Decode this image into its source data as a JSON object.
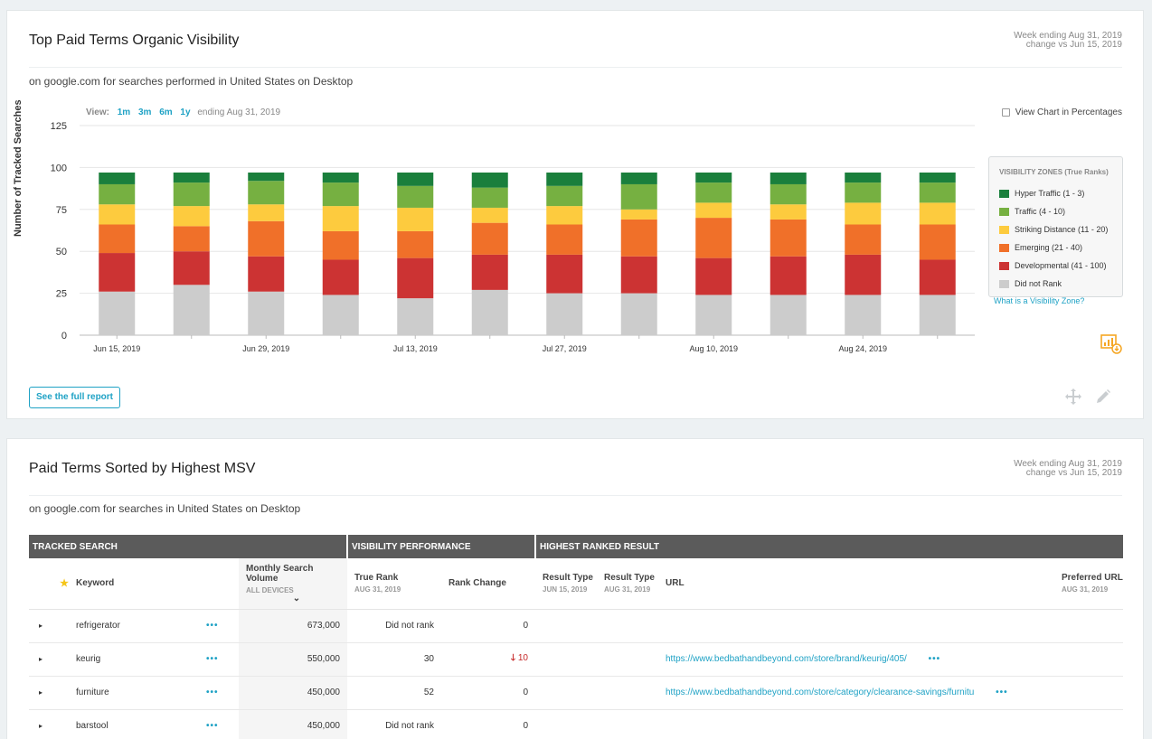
{
  "card1": {
    "title": "Top Paid Terms Organic Visibility",
    "week_line1": "Week ending Aug 31, 2019",
    "week_line2": "change vs Jun 15, 2019",
    "subtitle": "on google.com for searches performed in United States on Desktop",
    "view_label": "View:",
    "view_options": [
      "1m",
      "3m",
      "6m",
      "1y"
    ],
    "view_ending": "ending Aug 31, 2019",
    "percent_label": "View Chart in Percentages",
    "legend_title": "VISIBILITY ZONES (True Ranks)",
    "visibility_link": "What is a Visibility Zone?",
    "full_report": "See the full report"
  },
  "chart_data": {
    "type": "bar",
    "stacked": true,
    "ylabel": "Number of Tracked Searches",
    "ylim": [
      0,
      125
    ],
    "yticks": [
      0,
      25,
      50,
      75,
      100,
      125
    ],
    "xtick_labels": [
      "Jun 15, 2019",
      "Jun 29, 2019",
      "Jul 13, 2019",
      "Jul 27, 2019",
      "Aug 10, 2019",
      "Aug 24, 2019"
    ],
    "legend": "right",
    "grid": true,
    "series": [
      {
        "name": "Did not Rank",
        "color": "#cccccc",
        "values": [
          26,
          30,
          26,
          24,
          22,
          27,
          25,
          25,
          24,
          24,
          24,
          24
        ]
      },
      {
        "name": "Developmental (41 - 100)",
        "color": "#cc3333",
        "values": [
          23,
          20,
          21,
          21,
          24,
          21,
          23,
          22,
          22,
          23,
          24,
          21
        ]
      },
      {
        "name": "Emerging (21 - 40)",
        "color": "#f07029",
        "values": [
          17,
          15,
          21,
          17,
          16,
          19,
          18,
          22,
          24,
          22,
          18,
          21
        ]
      },
      {
        "name": "Striking Distance (11 - 20)",
        "color": "#fdcb3e",
        "values": [
          12,
          12,
          10,
          15,
          14,
          9,
          11,
          6,
          9,
          9,
          13,
          13
        ]
      },
      {
        "name": "Traffic (4 - 10)",
        "color": "#76b041",
        "values": [
          12,
          14,
          14,
          14,
          13,
          12,
          12,
          15,
          12,
          12,
          12,
          12
        ]
      },
      {
        "name": "Hyper Traffic (1 - 3)",
        "color": "#1a7f3c",
        "values": [
          7,
          6,
          5,
          6,
          8,
          9,
          8,
          7,
          6,
          7,
          6,
          6
        ]
      }
    ],
    "legend_order": [
      5,
      4,
      3,
      2,
      1,
      0
    ]
  },
  "card2": {
    "title": "Paid Terms Sorted by Highest MSV",
    "week_line1": "Week ending Aug 31, 2019",
    "week_line2": "change vs Jun 15, 2019",
    "subtitle": "on google.com for searches in United States on Desktop",
    "groups": {
      "tracked": "TRACKED SEARCH",
      "visibility": "VISIBILITY PERFORMANCE",
      "highest": "HIGHEST RANKED RESULT"
    },
    "columns": {
      "keyword": "Keyword",
      "msv": "Monthly Search Volume",
      "msv_sub": "ALL DEVICES",
      "true_rank": "True Rank",
      "true_rank_sub": "AUG 31, 2019",
      "rank_change": "Rank Change",
      "result_type": "Result Type",
      "result_type_sub1": "JUN 15, 2019",
      "result_type_sub2": "AUG 31, 2019",
      "url": "URL",
      "preferred_url": "Preferred URL",
      "preferred_url_sub": "AUG 31, 2019"
    },
    "rows": [
      {
        "keyword": "refrigerator",
        "msv": "673,000",
        "true_rank": "Did not rank",
        "rank_change": "0",
        "change_dir": "",
        "url": ""
      },
      {
        "keyword": "keurig",
        "msv": "550,000",
        "true_rank": "30",
        "rank_change": "10",
        "change_dir": "down",
        "url": "https://www.bedbathandbeyond.com/store/brand/keurig/405/"
      },
      {
        "keyword": "furniture",
        "msv": "450,000",
        "true_rank": "52",
        "rank_change": "0",
        "change_dir": "",
        "url": "https://www.bedbathandbeyond.com/store/category/clearance-savings/furnitu"
      },
      {
        "keyword": "barstool",
        "msv": "450,000",
        "true_rank": "Did not rank",
        "rank_change": "0",
        "change_dir": "",
        "url": ""
      }
    ]
  }
}
